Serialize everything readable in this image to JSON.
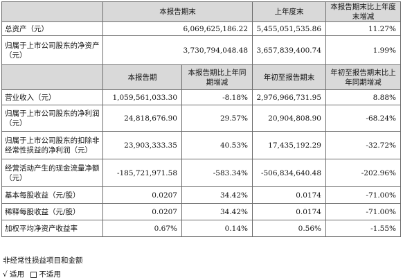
{
  "table1": {
    "headers": [
      "本报告期末",
      "上年度末",
      "本报告期末比上年度末增减"
    ],
    "rows": [
      {
        "label": "总资产（元）",
        "v1": "6,069,625,186.22",
        "v2": "5,455,051,535.86",
        "v3": "11.27%"
      },
      {
        "label": "归属于上市公司股东的净资产（元）",
        "v1": "3,730,794,048.48",
        "v2": "3,657,839,400.74",
        "v3": "1.99%"
      }
    ]
  },
  "table2": {
    "headers": [
      "本报告期",
      "本报告期比上年同期增减",
      "年初至报告期末",
      "年初至报告期末比上年同期增减"
    ],
    "rows": [
      {
        "label": "营业收入（元）",
        "v1": "1,059,561,033.30",
        "v2": "-8.18%",
        "v3": "2,976,966,731.95",
        "v4": "8.88%"
      },
      {
        "label": "归属于上市公司股东的净利润（元）",
        "v1": "24,818,676.90",
        "v2": "29.57%",
        "v3": "20,904,808.90",
        "v4": "-68.24%"
      },
      {
        "label": "归属于上市公司股东的扣除非经常性损益的净利润（元）",
        "v1": "23,903,333.35",
        "v2": "40.53%",
        "v3": "17,435,192.29",
        "v4": "-32.72%"
      },
      {
        "label": "经营活动产生的现金流量净额（元）",
        "v1": "-185,721,971.58",
        "v2": "-583.34%",
        "v3": "-506,834,640.48",
        "v4": "-202.96%"
      },
      {
        "label": "基本每股收益（元/股）",
        "v1": "0.0207",
        "v2": "34.42%",
        "v3": "0.0174",
        "v4": "-71.00%"
      },
      {
        "label": "稀释每股收益（元/股）",
        "v1": "0.0207",
        "v2": "34.42%",
        "v3": "0.0174",
        "v4": "-71.00%"
      },
      {
        "label": "加权平均净资产收益率",
        "v1": "0.67%",
        "v2": "0.14%",
        "v3": "0.56%",
        "v4": "-1.55%"
      }
    ]
  },
  "footer": {
    "line1": "非经常性损益项目和金额",
    "check_mark": "√",
    "option_yes": "适用",
    "option_no": "不适用"
  }
}
